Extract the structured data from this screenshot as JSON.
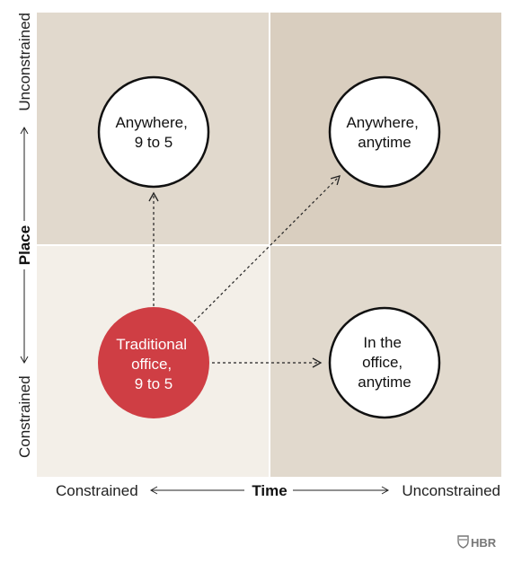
{
  "quadrants": [
    {
      "id": "top-left",
      "lines": [
        "Anywhere,",
        "9 to 5"
      ],
      "fill": "#e1d9cd",
      "circle": "#ffffff",
      "text": "#111111"
    },
    {
      "id": "top-right",
      "lines": [
        "Anywhere,",
        "anytime"
      ],
      "fill": "#d9cebf",
      "circle": "#ffffff",
      "text": "#111111"
    },
    {
      "id": "bottom-left",
      "lines": [
        "Traditional",
        "office,",
        "9 to 5"
      ],
      "fill": "#f3efe8",
      "circle": "#cf3e44",
      "text": "#ffffff"
    },
    {
      "id": "bottom-right",
      "lines": [
        "In the",
        "office,",
        "anytime"
      ],
      "fill": "#e1d9cd",
      "circle": "#ffffff",
      "text": "#111111"
    }
  ],
  "axes": {
    "x": {
      "title": "Time",
      "low": "Constrained",
      "high": "Unconstrained"
    },
    "y": {
      "title": "Place",
      "low": "Constrained",
      "high": "Unconstrained"
    }
  },
  "brand": {
    "name": "HBR",
    "icon": "hbr-shield-icon"
  },
  "colors": {
    "accent_red": "#cf3e44",
    "divider": "#ffffff",
    "ink": "#111111"
  }
}
